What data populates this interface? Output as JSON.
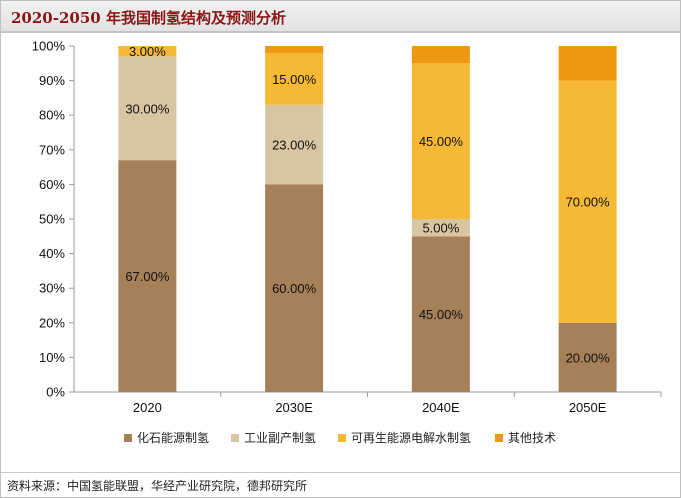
{
  "title": "2020-2050 年我国制氢结构及预测分析",
  "source": "资料来源：中国氢能联盟，华经产业研究院，德邦研究所",
  "chart_data": {
    "type": "bar",
    "stacked": true,
    "categories": [
      "2020",
      "2030E",
      "2040E",
      "2050E"
    ],
    "series": [
      {
        "name": "化石能源制氢",
        "color": "#a68058",
        "values": [
          67,
          60,
          45,
          20
        ],
        "labels": [
          "67.00%",
          "60.00%",
          "45.00%",
          "20.00%"
        ]
      },
      {
        "name": "工业副产制氢",
        "color": "#d8c6a2",
        "values": [
          30,
          23,
          5,
          0
        ],
        "labels": [
          "30.00%",
          "23.00%",
          "5.00%",
          ""
        ]
      },
      {
        "name": "可再生能源电解水制氢",
        "color": "#f6b935",
        "values": [
          3,
          15,
          45,
          70
        ],
        "labels": [
          "3.00%",
          "15.00%",
          "45.00%",
          "70.00%"
        ]
      },
      {
        "name": "其他技术",
        "color": "#f0960f",
        "values": [
          0,
          2,
          5,
          10
        ],
        "labels": [
          "",
          "",
          "",
          ""
        ]
      }
    ],
    "ylim": [
      0,
      100
    ],
    "y_ticks": [
      "0%",
      "10%",
      "20%",
      "30%",
      "40%",
      "50%",
      "60%",
      "70%",
      "80%",
      "90%",
      "100%"
    ],
    "grid": false,
    "legend_position": "bottom"
  }
}
